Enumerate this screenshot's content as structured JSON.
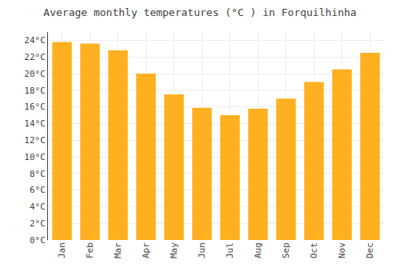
{
  "chart_data": {
    "type": "bar",
    "title": "Average monthly temperatures (°C ) in Forquilhinha",
    "categories": [
      "Jan",
      "Feb",
      "Mar",
      "Apr",
      "May",
      "Jun",
      "Jul",
      "Aug",
      "Sep",
      "Oct",
      "Nov",
      "Dec"
    ],
    "values": [
      23.8,
      23.6,
      22.8,
      20.0,
      17.5,
      15.9,
      15.0,
      15.8,
      17.0,
      19.0,
      20.5,
      22.5
    ],
    "color": "#FFB020",
    "ylim": [
      0,
      25
    ],
    "yticks": [
      {
        "value": 0,
        "label": "0°C"
      },
      {
        "value": 2,
        "label": "2°C"
      },
      {
        "value": 4,
        "label": "4°C"
      },
      {
        "value": 6,
        "label": "6°C"
      },
      {
        "value": 8,
        "label": "8°C"
      },
      {
        "value": 10,
        "label": "10°C"
      },
      {
        "value": 12,
        "label": "12°C"
      },
      {
        "value": 14,
        "label": "14°C"
      },
      {
        "value": 16,
        "label": "16°C"
      },
      {
        "value": 18,
        "label": "18°C"
      },
      {
        "value": 20,
        "label": "20°C"
      },
      {
        "value": 22,
        "label": "22°C"
      },
      {
        "value": 24,
        "label": "24°C"
      }
    ],
    "grid": true
  }
}
